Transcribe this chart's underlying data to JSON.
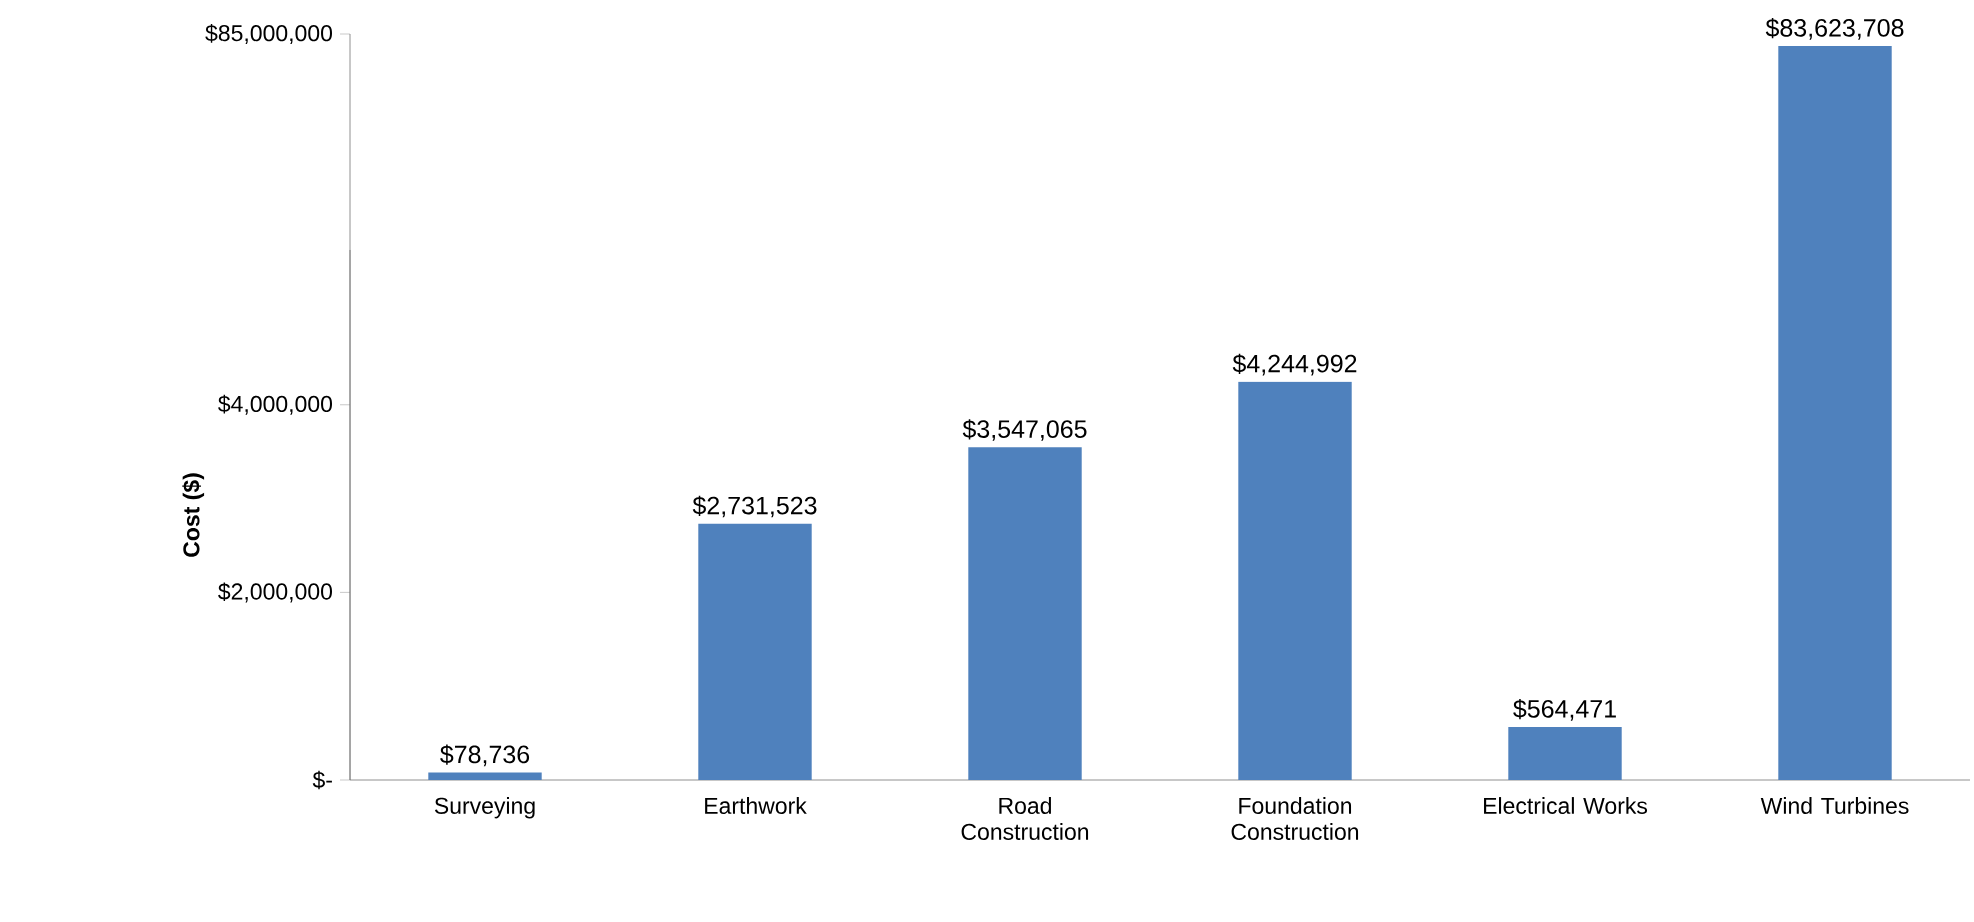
{
  "chart_data": [
    {
      "type": "bar",
      "ylabel": "Cost ($)",
      "categories": [
        "Surveying",
        "Earthwork",
        "Road Construction",
        "Foundation Construction",
        "Electrical Works",
        "Wind Turbines"
      ],
      "values": [
        78736,
        2731523,
        3547065,
        4244992,
        564471,
        null
      ],
      "value_labels": [
        "$78,736",
        "$2,731,523",
        "$3,547,065",
        "$4,244,992",
        "$564,471",
        null
      ],
      "color": "#4f81bd",
      "ylim": [
        0,
        5650000
      ],
      "yticks": [
        {
          "value": 0,
          "label": "$-"
        },
        {
          "value": 2000000,
          "label": "$2,000,000"
        },
        {
          "value": 4000000,
          "label": "$4,000,000"
        }
      ]
    },
    {
      "type": "bar",
      "categories": [
        null,
        null,
        null,
        null,
        null,
        null
      ],
      "values": [
        null,
        null,
        null,
        null,
        null,
        83623708
      ],
      "value_labels": [
        null,
        null,
        null,
        null,
        null,
        "$83,623,708"
      ],
      "color": "#4f81bd",
      "ylim": [
        0,
        85000000
      ],
      "yticks": [
        {
          "value": 85000000,
          "label": "$85,000,000"
        }
      ],
      "tick_labels": "y"
    }
  ]
}
